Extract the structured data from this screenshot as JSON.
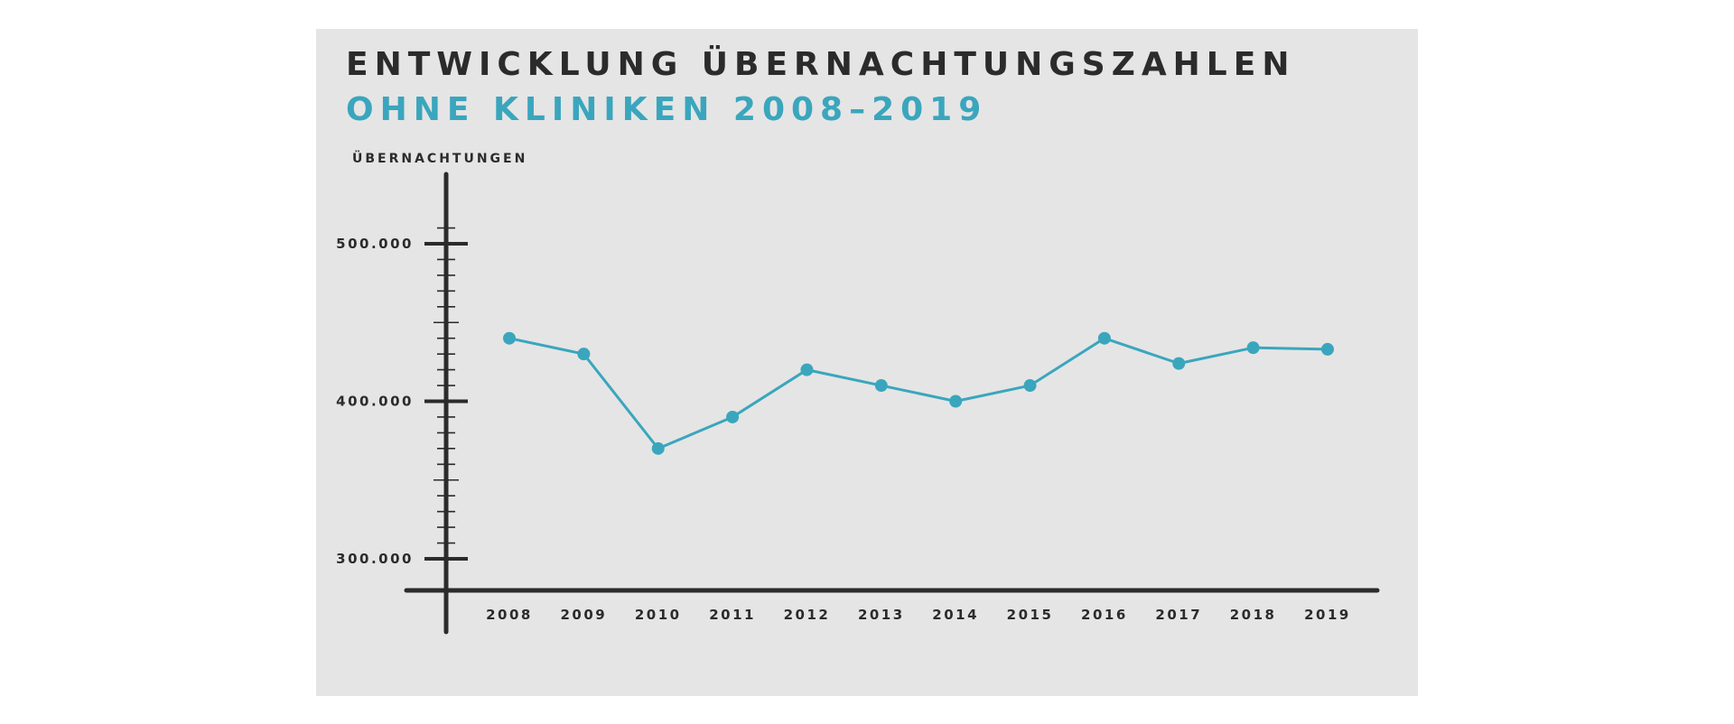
{
  "chart_data": {
    "type": "line",
    "title": "ENTWICKLUNG ÜBERNACHTUNGSZAHLEN",
    "subtitle": "OHNE KLINIKEN 2008–2019",
    "xlabel": "",
    "ylabel": "ÜBERNACHTUNGEN",
    "categories": [
      "2008",
      "2009",
      "2010",
      "2011",
      "2012",
      "2013",
      "2014",
      "2015",
      "2016",
      "2017",
      "2018",
      "2019"
    ],
    "values": [
      440000,
      430000,
      370000,
      390000,
      420000,
      410000,
      400000,
      410000,
      440000,
      424000,
      434000,
      433000
    ],
    "ylim": [
      280000,
      550000
    ],
    "yticks": [
      300000,
      400000,
      500000
    ],
    "ytick_labels": [
      "300.000",
      "400.000",
      "500.000"
    ],
    "grid": false,
    "colors": {
      "line": "#3aa6bd",
      "axis": "#2b2b2b",
      "background": "#e5e5e5",
      "title": "#2b2b2b",
      "subtitle": "#3aa6bd"
    }
  }
}
